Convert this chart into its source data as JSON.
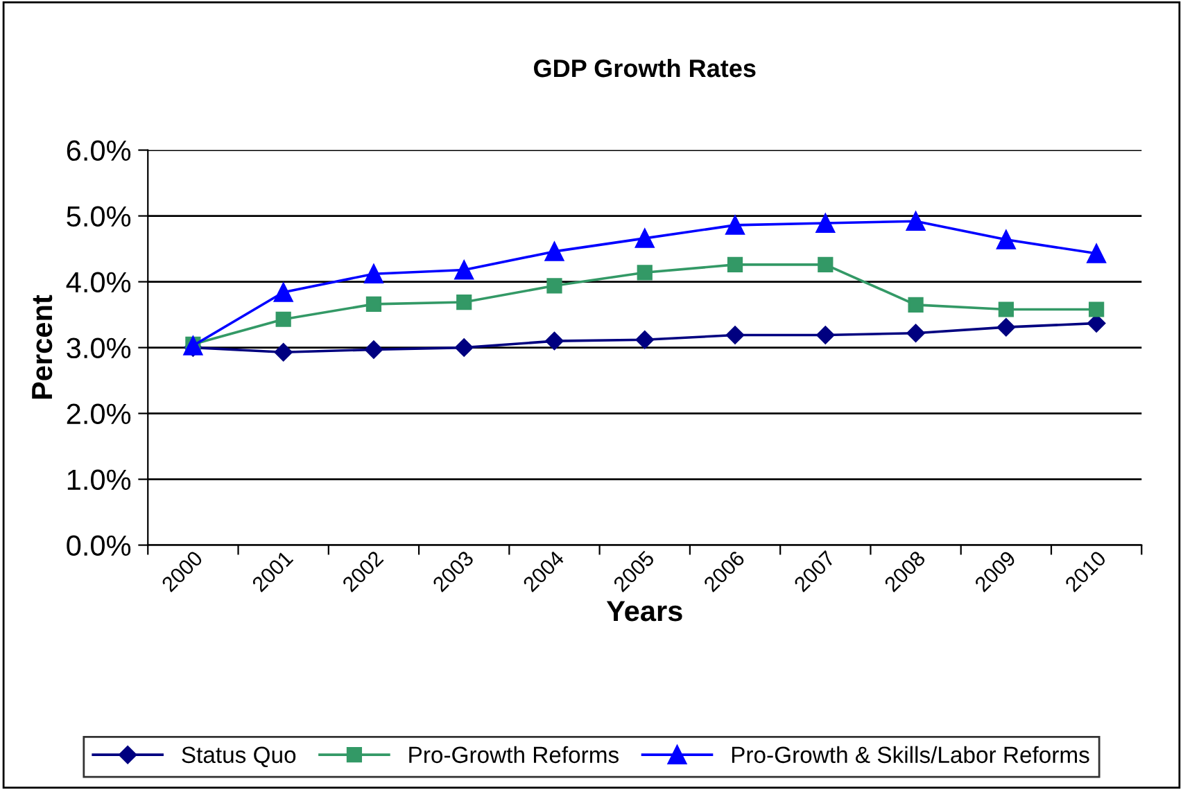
{
  "chart_data": {
    "type": "line",
    "title": "GDP Growth Rates",
    "xlabel": "Years",
    "ylabel": "Percent",
    "categories": [
      "2000",
      "2001",
      "2002",
      "2003",
      "2004",
      "2005",
      "2006",
      "2007",
      "2008",
      "2009",
      "2010"
    ],
    "series": [
      {
        "name": "Status Quo",
        "color": "#000080",
        "marker": "diamond",
        "values": [
          3.0,
          2.93,
          2.97,
          3.0,
          3.1,
          3.12,
          3.19,
          3.19,
          3.22,
          3.31,
          3.37
        ]
      },
      {
        "name": "Pro-Growth Reforms",
        "color": "#339966",
        "marker": "square",
        "values": [
          3.05,
          3.43,
          3.66,
          3.69,
          3.94,
          4.14,
          4.26,
          4.26,
          3.65,
          3.58,
          3.58
        ]
      },
      {
        "name": "Pro-Growth & Skills/Labor Reforms",
        "color": "#0000ff",
        "marker": "triangle",
        "values": [
          3.03,
          3.84,
          4.12,
          4.18,
          4.46,
          4.66,
          4.86,
          4.89,
          4.92,
          4.64,
          4.43
        ]
      }
    ],
    "ylim": [
      0,
      6
    ],
    "yticks": [
      {
        "value": 0,
        "label": "0.0%"
      },
      {
        "value": 1,
        "label": "1.0%"
      },
      {
        "value": 2,
        "label": "2.0%"
      },
      {
        "value": 3,
        "label": "3.0%"
      },
      {
        "value": 4,
        "label": "4.0%"
      },
      {
        "value": 5,
        "label": "5.0%"
      },
      {
        "value": 6,
        "label": "6.0%"
      }
    ],
    "grid": "y",
    "legend": "bottom",
    "line_style": "solid"
  }
}
